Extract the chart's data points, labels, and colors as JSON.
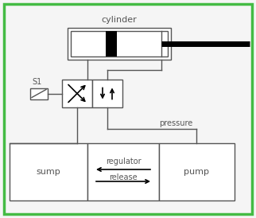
{
  "border_color": "#44bb44",
  "bg_color": "#f5f5f5",
  "line_color": "#555555",
  "fill_color": "#ffffff",
  "title": "cylinder",
  "label_s1": "S1",
  "label_sump": "sump",
  "label_pump": "pump",
  "label_pressure": "pressure",
  "label_regulator": "regulator",
  "label_release": "release",
  "figsize": [
    3.22,
    2.74
  ],
  "dpi": 100
}
